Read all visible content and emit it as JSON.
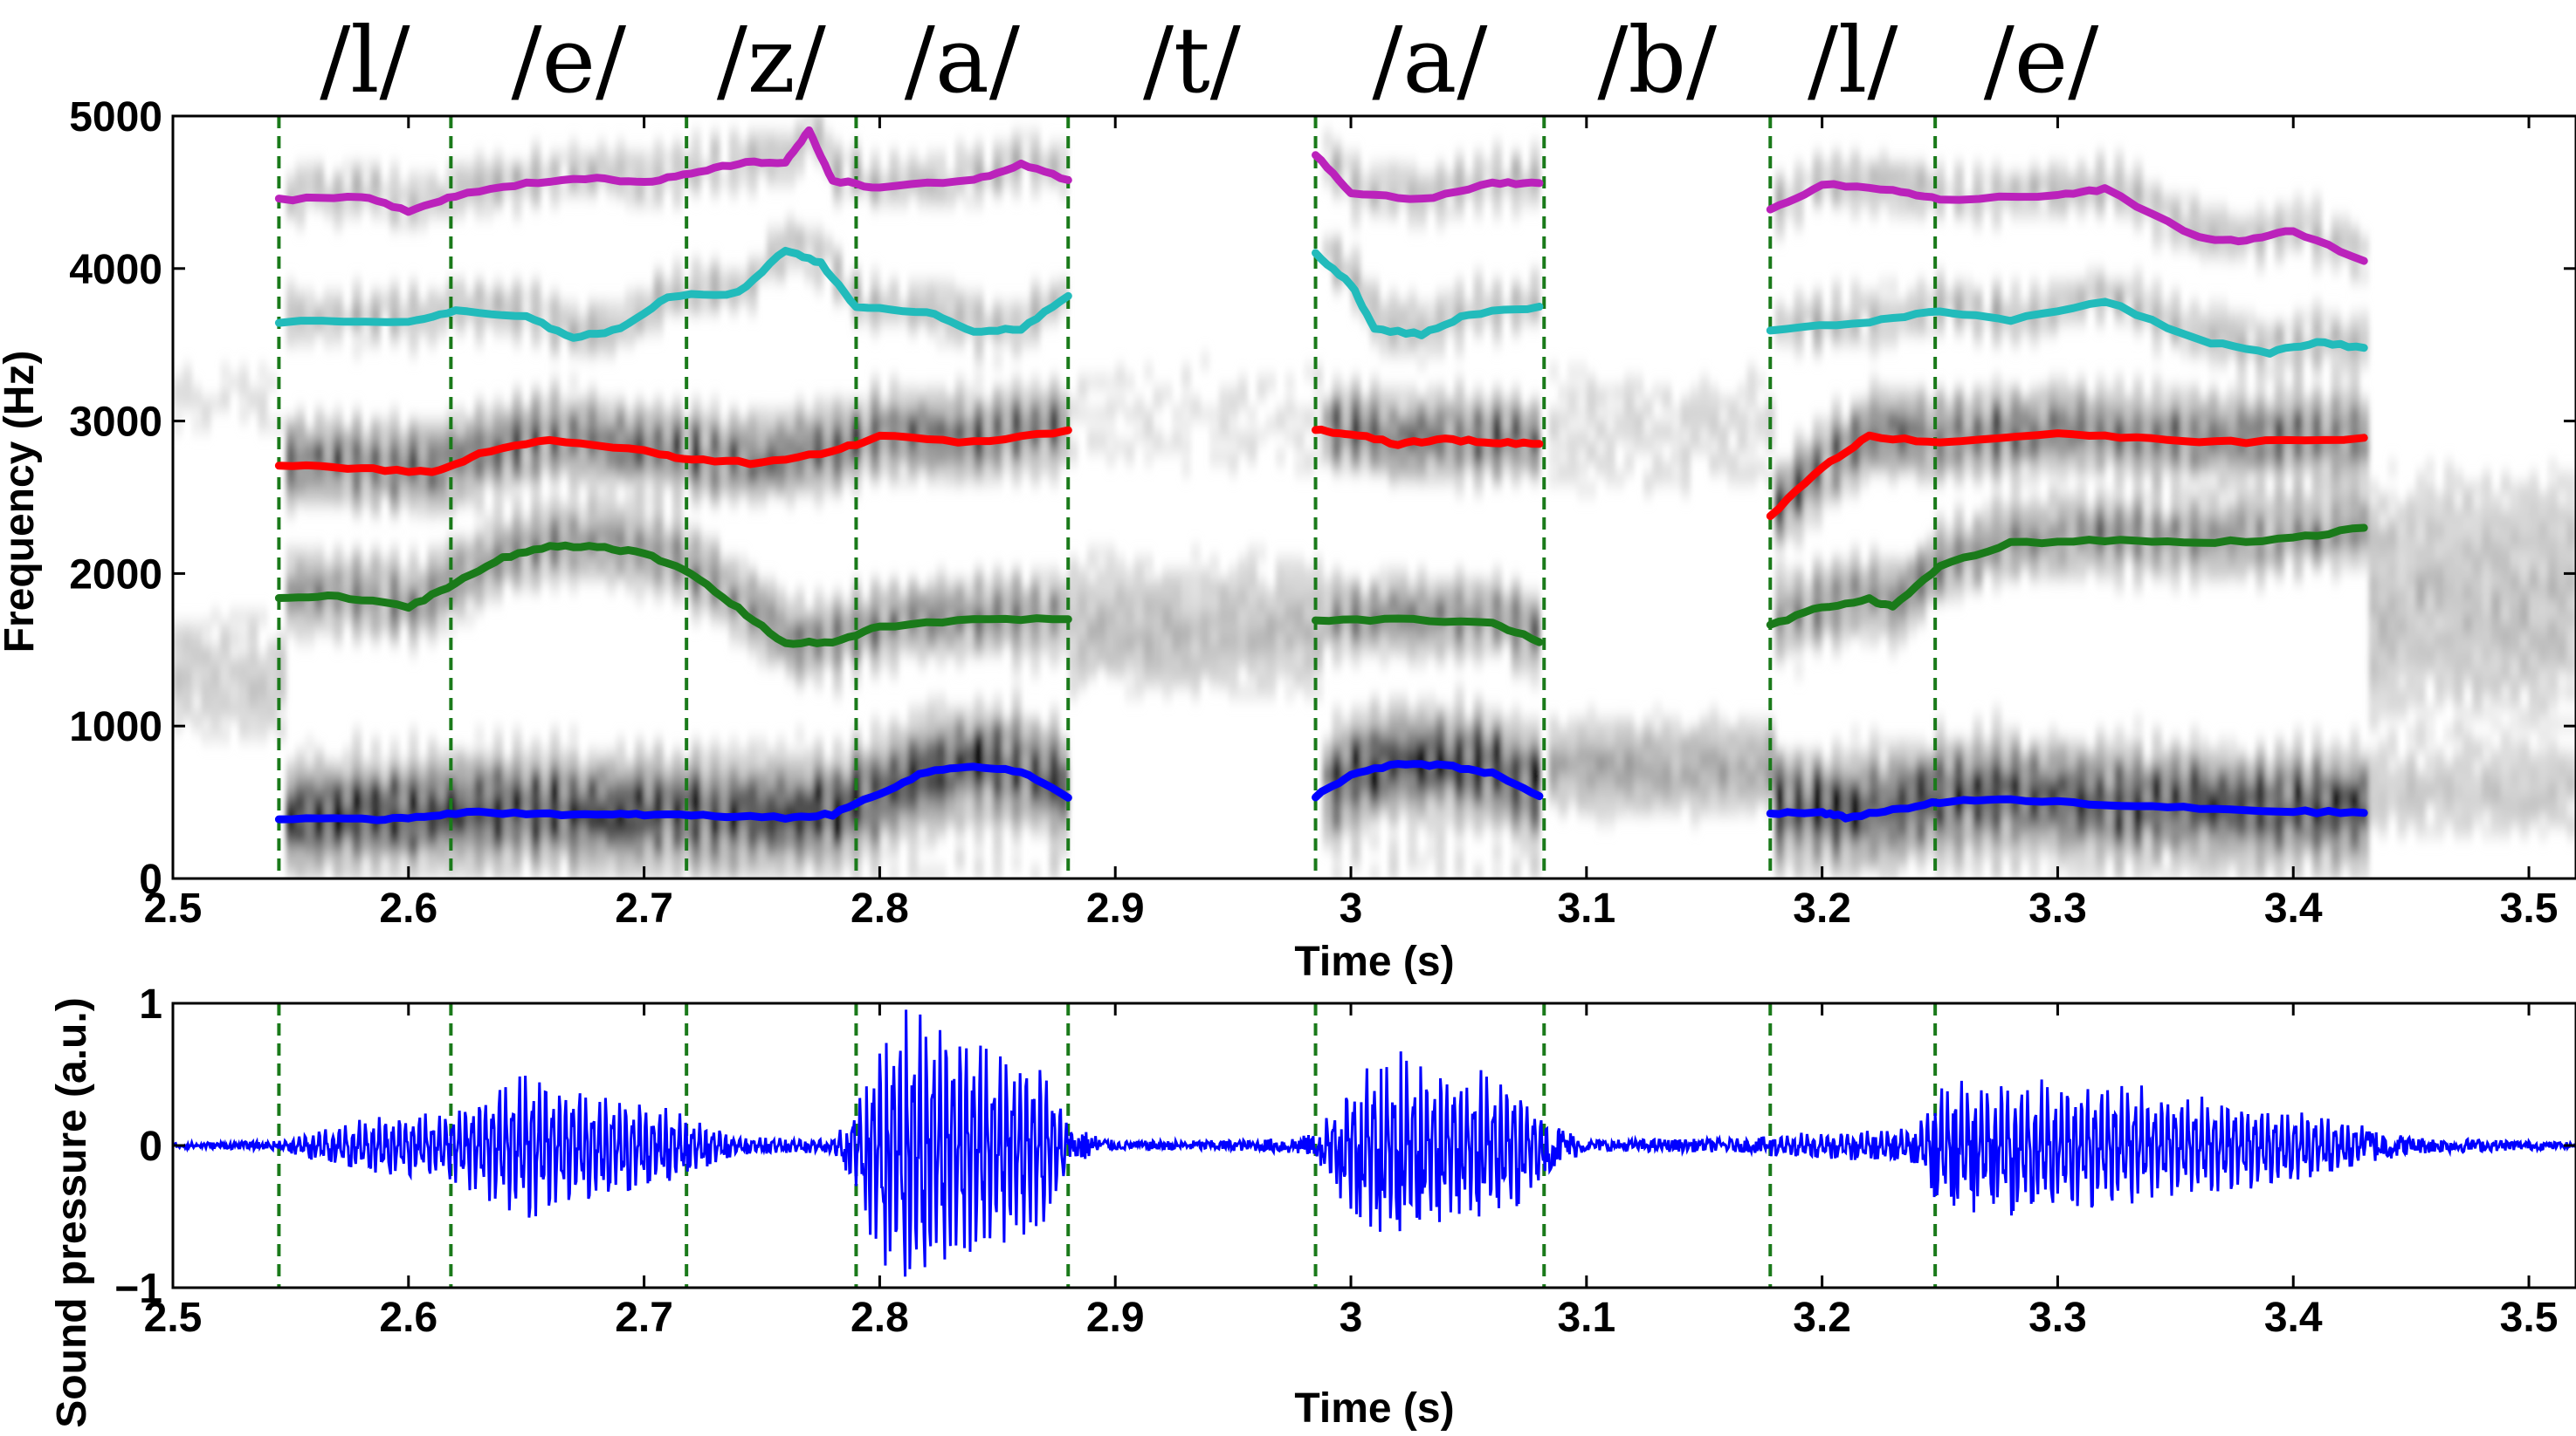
{
  "chart_data": [
    {
      "type": "heatmap",
      "title": "",
      "xlabel": "Time (s)",
      "ylabel": "Frequency (Hz)",
      "xlim": [
        2.5,
        3.52
      ],
      "ylim": [
        0,
        5000
      ],
      "xticks": [
        "2.5",
        "2.6",
        "2.7",
        "2.8",
        "2.9",
        "3",
        "3.1",
        "3.2",
        "3.3",
        "3.4",
        "3.5"
      ],
      "yticks": [
        "0",
        "1000",
        "2000",
        "3000",
        "4000",
        "5000"
      ],
      "colormap": "grayscale",
      "phonemes": [
        "/l/",
        "/e/",
        "/z/",
        "/a/",
        "/t/",
        "/a/",
        "/b/",
        "/l/",
        "/e/"
      ],
      "segment_boundaries": [
        2.545,
        2.618,
        2.718,
        2.79,
        2.88,
        2.985,
        3.082,
        3.178,
        3.248
      ],
      "boundary_color": "#1a7a1a",
      "voiced_regions": [
        {
          "start": 2.545,
          "end": 2.88
        },
        {
          "start": 2.985,
          "end": 3.082
        },
        {
          "start": 3.178,
          "end": 3.43
        }
      ],
      "formant_colors": {
        "F1": "#0000ff",
        "F2": "#1a7a1a",
        "F3": "#ff0000",
        "F4": "#22bbbb",
        "F5": "#bb22bb"
      },
      "series": [
        {
          "key": "F1",
          "segments": [
            [
              [
                2.545,
                390
              ],
              [
                2.58,
                385
              ],
              [
                2.6,
                400
              ],
              [
                2.62,
                430
              ],
              [
                2.65,
                430
              ],
              [
                2.68,
                415
              ],
              [
                2.7,
                420
              ],
              [
                2.73,
                410
              ],
              [
                2.76,
                400
              ],
              [
                2.78,
                420
              ],
              [
                2.8,
                560
              ],
              [
                2.82,
                700
              ],
              [
                2.84,
                740
              ],
              [
                2.86,
                700
              ],
              [
                2.88,
                530
              ]
            ],
            [
              [
                2.985,
                540
              ],
              [
                3.0,
                680
              ],
              [
                3.02,
                750
              ],
              [
                3.04,
                740
              ],
              [
                3.06,
                690
              ],
              [
                3.08,
                540
              ]
            ],
            [
              [
                3.178,
                430
              ],
              [
                3.2,
                430
              ],
              [
                3.21,
                400
              ],
              [
                3.23,
                450
              ],
              [
                3.25,
                500
              ],
              [
                3.28,
                520
              ],
              [
                3.32,
                480
              ],
              [
                3.36,
                460
              ],
              [
                3.4,
                440
              ],
              [
                3.43,
                430
              ]
            ]
          ]
        },
        {
          "key": "F2",
          "segments": [
            [
              [
                2.545,
                1840
              ],
              [
                2.57,
                1850
              ],
              [
                2.6,
                1780
              ],
              [
                2.62,
                1940
              ],
              [
                2.64,
                2100
              ],
              [
                2.66,
                2180
              ],
              [
                2.68,
                2180
              ],
              [
                2.7,
                2130
              ],
              [
                2.72,
                2000
              ],
              [
                2.74,
                1770
              ],
              [
                2.76,
                1540
              ],
              [
                2.78,
                1550
              ],
              [
                2.8,
                1650
              ],
              [
                2.84,
                1700
              ],
              [
                2.88,
                1700
              ]
            ],
            [
              [
                2.985,
                1690
              ],
              [
                3.02,
                1700
              ],
              [
                3.06,
                1680
              ],
              [
                3.08,
                1550
              ]
            ],
            [
              [
                3.178,
                1660
              ],
              [
                3.2,
                1780
              ],
              [
                3.22,
                1830
              ],
              [
                3.23,
                1780
              ],
              [
                3.25,
                2050
              ],
              [
                3.28,
                2200
              ],
              [
                3.32,
                2220
              ],
              [
                3.36,
                2200
              ],
              [
                3.4,
                2230
              ],
              [
                3.43,
                2300
              ]
            ]
          ]
        },
        {
          "key": "F3",
          "segments": [
            [
              [
                2.545,
                2710
              ],
              [
                2.58,
                2690
              ],
              [
                2.61,
                2660
              ],
              [
                2.63,
                2780
              ],
              [
                2.66,
                2880
              ],
              [
                2.7,
                2800
              ],
              [
                2.72,
                2750
              ],
              [
                2.75,
                2720
              ],
              [
                2.78,
                2800
              ],
              [
                2.8,
                2900
              ],
              [
                2.84,
                2860
              ],
              [
                2.88,
                2940
              ]
            ],
            [
              [
                2.985,
                2940
              ],
              [
                3.0,
                2920
              ],
              [
                3.02,
                2850
              ],
              [
                3.04,
                2880
              ],
              [
                3.06,
                2860
              ],
              [
                3.08,
                2850
              ]
            ],
            [
              [
                3.178,
                2380
              ],
              [
                3.2,
                2700
              ],
              [
                3.22,
                2900
              ],
              [
                3.25,
                2860
              ],
              [
                3.3,
                2920
              ],
              [
                3.34,
                2880
              ],
              [
                3.38,
                2860
              ],
              [
                3.43,
                2890
              ]
            ]
          ]
        },
        {
          "key": "F4",
          "segments": [
            [
              [
                2.545,
                3650
              ],
              [
                2.6,
                3650
              ],
              [
                2.62,
                3720
              ],
              [
                2.65,
                3680
              ],
              [
                2.67,
                3550
              ],
              [
                2.69,
                3600
              ],
              [
                2.71,
                3820
              ],
              [
                2.74,
                3840
              ],
              [
                2.76,
                4120
              ],
              [
                2.775,
                4040
              ],
              [
                2.79,
                3740
              ],
              [
                2.82,
                3720
              ],
              [
                2.84,
                3590
              ],
              [
                2.86,
                3600
              ],
              [
                2.88,
                3820
              ]
            ],
            [
              [
                2.985,
                4100
              ],
              [
                3.0,
                3900
              ],
              [
                3.01,
                3600
              ],
              [
                3.03,
                3570
              ],
              [
                3.05,
                3700
              ],
              [
                3.08,
                3750
              ]
            ],
            [
              [
                3.178,
                3600
              ],
              [
                3.22,
                3650
              ],
              [
                3.25,
                3720
              ],
              [
                3.28,
                3660
              ],
              [
                3.32,
                3790
              ],
              [
                3.36,
                3530
              ],
              [
                3.39,
                3450
              ],
              [
                3.41,
                3520
              ],
              [
                3.43,
                3480
              ]
            ]
          ]
        },
        {
          "key": "F5",
          "segments": [
            [
              [
                2.545,
                4450
              ],
              [
                2.58,
                4470
              ],
              [
                2.6,
                4380
              ],
              [
                2.62,
                4480
              ],
              [
                2.65,
                4560
              ],
              [
                2.68,
                4600
              ],
              [
                2.7,
                4560
              ],
              [
                2.72,
                4620
              ],
              [
                2.74,
                4690
              ],
              [
                2.76,
                4700
              ],
              [
                2.77,
                4900
              ],
              [
                2.78,
                4580
              ],
              [
                2.8,
                4530
              ],
              [
                2.84,
                4580
              ],
              [
                2.86,
                4680
              ],
              [
                2.88,
                4580
              ]
            ],
            [
              [
                2.985,
                4740
              ],
              [
                3.0,
                4500
              ],
              [
                3.03,
                4450
              ],
              [
                3.06,
                4560
              ],
              [
                3.08,
                4560
              ]
            ],
            [
              [
                3.178,
                4380
              ],
              [
                3.2,
                4550
              ],
              [
                3.23,
                4520
              ],
              [
                3.25,
                4450
              ],
              [
                3.3,
                4480
              ],
              [
                3.32,
                4520
              ],
              [
                3.36,
                4200
              ],
              [
                3.38,
                4180
              ],
              [
                3.4,
                4250
              ],
              [
                3.43,
                4050
              ]
            ]
          ]
        }
      ]
    },
    {
      "type": "line",
      "title": "",
      "xlabel": "Time (s)",
      "ylabel": "Sound pressure (a.u.)",
      "xlim": [
        2.5,
        3.52
      ],
      "ylim": [
        -1,
        1
      ],
      "xticks": [
        "2.5",
        "2.6",
        "2.7",
        "2.8",
        "2.9",
        "3",
        "3.1",
        "3.2",
        "3.3",
        "3.4",
        "3.5"
      ],
      "yticks": [
        "−1",
        "0",
        "1"
      ],
      "line_color": "#0000ff",
      "segment_boundaries": [
        2.545,
        2.618,
        2.718,
        2.79,
        2.88,
        2.985,
        3.082,
        3.178,
        3.248
      ],
      "amplitude_envelope": [
        [
          2.5,
          0.02
        ],
        [
          2.545,
          0.03
        ],
        [
          2.56,
          0.1
        ],
        [
          2.59,
          0.2
        ],
        [
          2.615,
          0.22
        ],
        [
          2.63,
          0.35
        ],
        [
          2.65,
          0.52
        ],
        [
          2.67,
          0.4
        ],
        [
          2.7,
          0.3
        ],
        [
          2.718,
          0.2
        ],
        [
          2.74,
          0.06
        ],
        [
          2.78,
          0.05
        ],
        [
          2.79,
          0.3
        ],
        [
          2.8,
          0.8
        ],
        [
          2.815,
          0.95
        ],
        [
          2.84,
          0.75
        ],
        [
          2.87,
          0.55
        ],
        [
          2.88,
          0.15
        ],
        [
          2.9,
          0.03
        ],
        [
          2.96,
          0.04
        ],
        [
          2.985,
          0.08
        ],
        [
          3.0,
          0.5
        ],
        [
          3.015,
          0.65
        ],
        [
          3.04,
          0.52
        ],
        [
          3.07,
          0.45
        ],
        [
          3.082,
          0.2
        ],
        [
          3.1,
          0.04
        ],
        [
          3.17,
          0.05
        ],
        [
          3.178,
          0.07
        ],
        [
          3.24,
          0.12
        ],
        [
          3.25,
          0.45
        ],
        [
          3.28,
          0.45
        ],
        [
          3.33,
          0.4
        ],
        [
          3.38,
          0.3
        ],
        [
          3.42,
          0.18
        ],
        [
          3.45,
          0.06
        ],
        [
          3.52,
          0.02
        ]
      ]
    }
  ]
}
